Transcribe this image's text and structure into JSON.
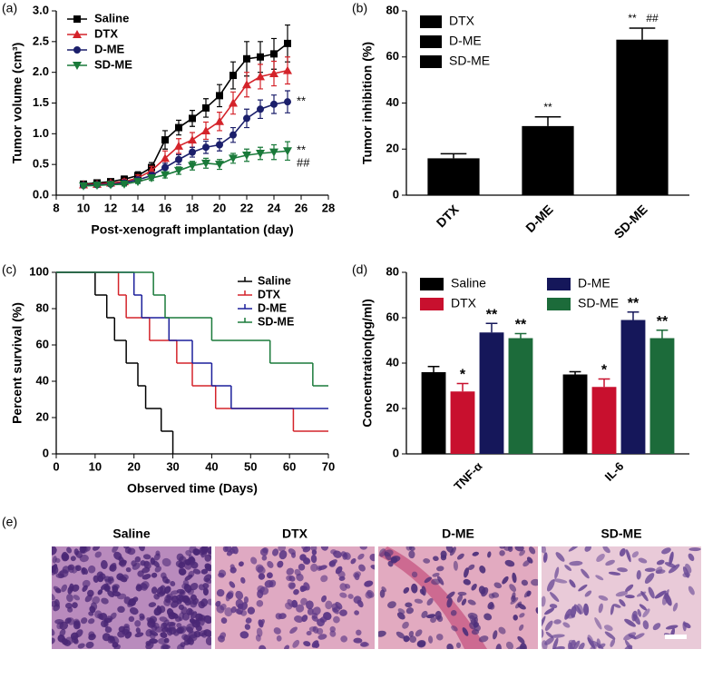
{
  "chart_data": [
    {
      "type": "line",
      "panel": "(a)",
      "xlabel": "Post-xenograft implantation (day)",
      "ylabel": "Tumor volume (cm³)",
      "x": [
        10,
        11,
        12,
        13,
        14,
        15,
        16,
        17,
        18,
        19,
        20,
        21,
        22,
        23,
        24,
        25
      ],
      "xlim": [
        8,
        28
      ],
      "xticks": [
        8,
        10,
        12,
        14,
        16,
        18,
        20,
        22,
        24,
        26,
        28
      ],
      "ylim": [
        0,
        3
      ],
      "yticks": [
        {
          "value": 0,
          "label": "0.0"
        },
        0.5,
        {
          "value": 1,
          "label": "1.0"
        },
        1.5,
        {
          "value": 2,
          "label": "2.0"
        },
        2.5,
        {
          "value": 3,
          "label": "3.0"
        }
      ],
      "legend": "upper left",
      "series": [
        {
          "name": "Saline",
          "color": "#000000",
          "marker": "square",
          "values": [
            0.18,
            0.2,
            0.22,
            0.26,
            0.32,
            0.45,
            0.9,
            1.1,
            1.25,
            1.42,
            1.62,
            1.95,
            2.22,
            2.25,
            2.3,
            2.47
          ],
          "errors": [
            0.03,
            0.03,
            0.04,
            0.05,
            0.06,
            0.08,
            0.15,
            0.12,
            0.13,
            0.15,
            0.18,
            0.22,
            0.28,
            0.25,
            0.25,
            0.3
          ]
        },
        {
          "name": "DTX",
          "color": "#d4232a",
          "marker": "triangle",
          "values": [
            0.17,
            0.18,
            0.2,
            0.22,
            0.28,
            0.4,
            0.6,
            0.8,
            0.9,
            1.05,
            1.2,
            1.5,
            1.8,
            1.93,
            1.98,
            2.03
          ],
          "errors": [
            0.02,
            0.03,
            0.03,
            0.04,
            0.05,
            0.07,
            0.12,
            0.12,
            0.12,
            0.14,
            0.15,
            0.18,
            0.2,
            0.2,
            0.2,
            0.22
          ]
        },
        {
          "name": "D-ME",
          "color": "#1b1f6b",
          "marker": "circle",
          "values": [
            0.16,
            0.17,
            0.18,
            0.2,
            0.25,
            0.32,
            0.45,
            0.58,
            0.7,
            0.78,
            0.82,
            0.98,
            1.25,
            1.4,
            1.48,
            1.52
          ],
          "errors": [
            0.02,
            0.02,
            0.03,
            0.03,
            0.04,
            0.05,
            0.07,
            0.08,
            0.08,
            0.1,
            0.1,
            0.12,
            0.15,
            0.15,
            0.15,
            0.18
          ],
          "annotation": [
            "**"
          ]
        },
        {
          "name": "SD-ME",
          "color": "#1a7a3a",
          "marker": "triangle-down",
          "values": [
            0.15,
            0.16,
            0.17,
            0.18,
            0.22,
            0.28,
            0.33,
            0.4,
            0.48,
            0.52,
            0.5,
            0.6,
            0.65,
            0.68,
            0.7,
            0.72
          ],
          "errors": [
            0.02,
            0.02,
            0.02,
            0.03,
            0.03,
            0.04,
            0.05,
            0.06,
            0.07,
            0.08,
            0.08,
            0.08,
            0.1,
            0.1,
            0.12,
            0.15
          ],
          "annotation": [
            "**",
            "##"
          ]
        }
      ]
    },
    {
      "type": "bar",
      "panel": "(b)",
      "ylabel": "Tumor inhibition (%)",
      "color": "#000000",
      "categories": [
        "DTX",
        "D-ME",
        "SD-ME"
      ],
      "values": [
        16,
        30,
        67.5
      ],
      "errors": [
        2,
        4,
        5
      ],
      "annotations": [
        null,
        [
          "**"
        ],
        [
          "**",
          "##"
        ]
      ],
      "ylim": [
        0,
        80
      ],
      "yticks": [
        0,
        20,
        40,
        60,
        80
      ],
      "legend": "upper left"
    },
    {
      "type": "step",
      "panel": "(c)",
      "xlabel": "Observed time (Days)",
      "ylabel": "Percent survival (%)",
      "xlim": [
        0,
        70
      ],
      "xticks": [
        0,
        10,
        20,
        30,
        40,
        50,
        60,
        70
      ],
      "ylim": [
        0,
        100
      ],
      "yticks": [
        0,
        20,
        40,
        60,
        80,
        100
      ],
      "legend": "upper right",
      "series": [
        {
          "name": "Saline",
          "color": "#000000",
          "x": [
            0,
            10,
            13,
            15,
            18,
            21,
            23,
            27,
            30
          ],
          "values": [
            100,
            87.5,
            75,
            62.5,
            50,
            37.5,
            25,
            12.5,
            0
          ]
        },
        {
          "name": "DTX",
          "color": "#d4232a",
          "x": [
            0,
            16,
            18,
            24,
            31,
            35,
            41,
            61,
            70
          ],
          "values": [
            100,
            87.5,
            75,
            62.5,
            50,
            37.5,
            25,
            12.5,
            12.5
          ]
        },
        {
          "name": "D-ME",
          "color": "#1b1f9b",
          "x": [
            0,
            20,
            22,
            29,
            35,
            40,
            45,
            70
          ],
          "values": [
            100,
            87.5,
            75,
            62.5,
            50,
            37.5,
            25,
            25
          ]
        },
        {
          "name": "SD-ME",
          "color": "#1a7a3a",
          "x": [
            0,
            25,
            28,
            40,
            55,
            66,
            70
          ],
          "values": [
            100,
            87.5,
            75,
            62.5,
            50,
            37.5,
            37.5
          ]
        }
      ]
    },
    {
      "type": "grouped-bar",
      "panel": "(d)",
      "ylabel": "Concentration(pg/ml)",
      "categories": [
        "TNF-α",
        "IL-6"
      ],
      "ylim": [
        0,
        80
      ],
      "yticks": [
        0,
        20,
        40,
        60,
        80
      ],
      "legend": "upper left",
      "series": [
        {
          "name": "Saline",
          "color": "#000000",
          "values": [
            36,
            35
          ],
          "errors": [
            2.5,
            1.2
          ]
        },
        {
          "name": "DTX",
          "color": "#c8102e",
          "values": [
            27.5,
            29.5
          ],
          "errors": [
            3.5,
            3.5
          ],
          "annotations": [
            "*",
            "*"
          ]
        },
        {
          "name": "D-ME",
          "color": "#15175a",
          "values": [
            53.5,
            59
          ],
          "errors": [
            4,
            3.5
          ],
          "annotations": [
            "**",
            "**"
          ]
        },
        {
          "name": "SD-ME",
          "color": "#1c6b3a",
          "values": [
            51,
            51
          ],
          "errors": [
            2,
            3.5
          ],
          "annotations": [
            "**",
            "**"
          ]
        }
      ]
    }
  ],
  "panel_e": {
    "label": "(e)",
    "titles": [
      "Saline",
      "DTX",
      "D-ME",
      "SD-ME"
    ]
  }
}
